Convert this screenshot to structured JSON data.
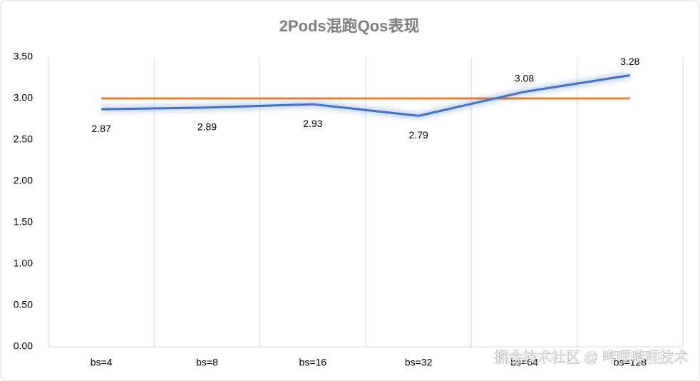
{
  "chart_data": {
    "type": "line",
    "title": "2Pods混跑Qos表现",
    "categories": [
      "bs=4",
      "bs=8",
      "bs=16",
      "bs=32",
      "bs=64",
      "bs=128"
    ],
    "series": [
      {
        "color": "#4472c4",
        "values": [
          2.87,
          2.89,
          2.93,
          2.79,
          3.08,
          3.28
        ],
        "value_labels": [
          "2.87",
          "2.89",
          "2.93",
          "2.79",
          "3.08",
          "3.28"
        ]
      },
      {
        "color": "#ed7d31",
        "values": [
          3,
          3,
          3,
          3,
          3,
          3
        ]
      }
    ],
    "ylim": [
      0,
      3.5
    ],
    "yticks": [
      {
        "value": 0,
        "label": "0.00"
      },
      {
        "value": 0.5,
        "label": "0.50"
      },
      {
        "value": 1,
        "label": "1.00"
      },
      {
        "value": 1.5,
        "label": "1.50"
      },
      {
        "value": 2,
        "label": "2.00"
      },
      {
        "value": 2.5,
        "label": "2.50"
      },
      {
        "value": 3,
        "label": "3.00"
      },
      {
        "value": 3.5,
        "label": "3.50"
      }
    ],
    "vertical_grid": true,
    "watermark": "掘金技术社区 @ 哔哩哔哩技术"
  }
}
